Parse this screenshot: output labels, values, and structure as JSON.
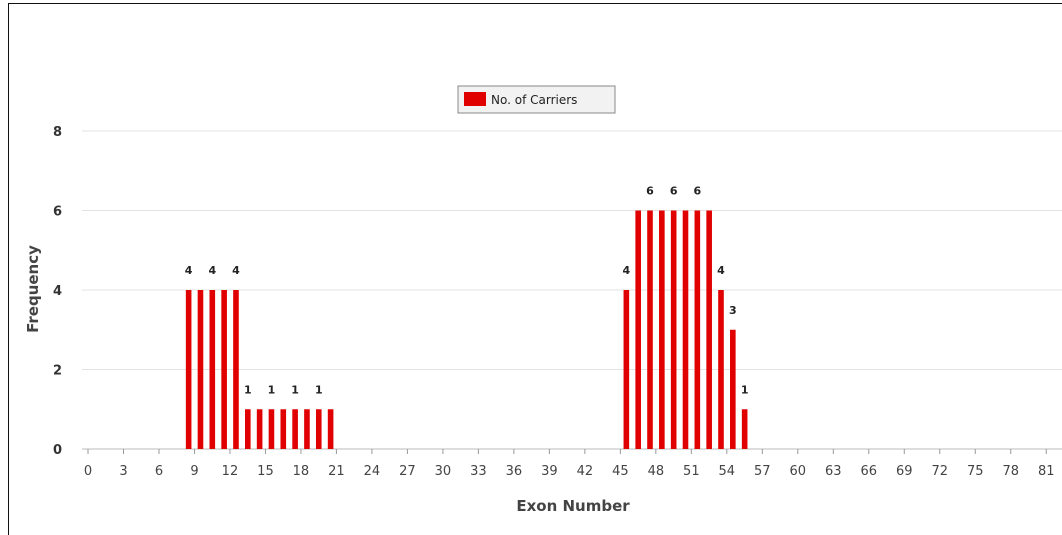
{
  "chart_data": {
    "type": "bar",
    "title": "",
    "xlabel": "Exon Number",
    "ylabel": "Frequency",
    "xlim": [
      0,
      81
    ],
    "ylim": [
      0,
      8
    ],
    "x_ticks": [
      "0",
      "3",
      "6",
      "9",
      "12",
      "15",
      "18",
      "21",
      "24",
      "27",
      "30",
      "33",
      "36",
      "39",
      "42",
      "45",
      "48",
      "51",
      "54",
      "57",
      "60",
      "63",
      "66",
      "69",
      "72",
      "75",
      "78",
      "81"
    ],
    "y_ticks": [
      "0",
      "2",
      "4",
      "6",
      "8"
    ],
    "grid": "horizontal",
    "legend_position": "top-center",
    "series": [
      {
        "name": "No. of Carriers",
        "color": "#e00000",
        "x": [
          8,
          9,
          10,
          11,
          12,
          13,
          14,
          15,
          16,
          17,
          18,
          19,
          20,
          45,
          46,
          47,
          48,
          49,
          50,
          51,
          52,
          53,
          54,
          55
        ],
        "values": [
          4,
          4,
          4,
          4,
          4,
          1,
          1,
          1,
          1,
          1,
          1,
          1,
          1,
          4,
          6,
          6,
          6,
          6,
          6,
          6,
          6,
          4,
          3,
          1
        ]
      }
    ],
    "data_labels": [
      {
        "x": 8,
        "text": "4"
      },
      {
        "x": 10,
        "text": "4"
      },
      {
        "x": 12,
        "text": "4"
      },
      {
        "x": 13,
        "text": "1"
      },
      {
        "x": 15,
        "text": "1"
      },
      {
        "x": 17,
        "text": "1"
      },
      {
        "x": 19,
        "text": "1"
      },
      {
        "x": 45,
        "text": "4"
      },
      {
        "x": 47,
        "text": "6"
      },
      {
        "x": 49,
        "text": "6"
      },
      {
        "x": 51,
        "text": "6"
      },
      {
        "x": 53,
        "text": "4"
      },
      {
        "x": 54,
        "text": "3"
      },
      {
        "x": 55,
        "text": "1"
      }
    ]
  }
}
